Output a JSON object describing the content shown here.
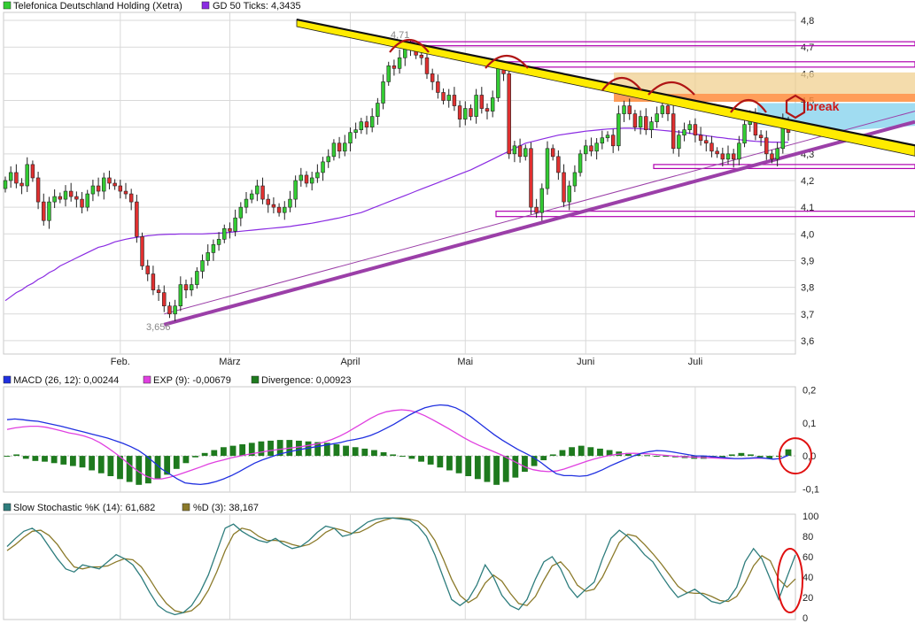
{
  "colors": {
    "grid": "#d9d9d9",
    "up": "#33cc33",
    "down": "#e03030",
    "ma": "#8a2be2",
    "trend_yellow": "#ffeb00",
    "trend_purple": "#9b3fa8",
    "support_box": "#b000b0",
    "resist_orange": "#ff8c3c",
    "resist_sand": "#f0d090",
    "zone_blue": "#8fd6ee",
    "marker_red": "#b01515",
    "macd_line": "#2030e0",
    "exp_line": "#e040e0",
    "divergence": "#1e7a1e",
    "stoch_k": "#2e7d7d",
    "stoch_d": "#8b7a2a"
  },
  "annotations": {
    "low_label": "3,656",
    "high_label": "4,71",
    "break_label": "break"
  },
  "chart_data": [
    {
      "type": "candlestick",
      "title": "",
      "legend": [
        {
          "label": "Telefonica Deutschland Holding (Xetra)",
          "color": "#33cc33"
        },
        {
          "label": "GD 50 Ticks: 4,3435",
          "color": "#8a2be2"
        }
      ],
      "y_ticks": [
        "4,8",
        "4,7",
        "4,6",
        "4,5",
        "4,4",
        "4,3",
        "4,2",
        "4,1",
        "4,0",
        "3,9",
        "3,8",
        "3,7",
        "3,6"
      ],
      "x_ticks": [
        "Feb.",
        "März",
        "April",
        "Mai",
        "Juni",
        "Juli"
      ],
      "ylim": [
        3.55,
        4.83
      ],
      "grid": true,
      "close": [
        4.2,
        4.23,
        4.19,
        4.18,
        4.26,
        4.21,
        4.12,
        4.05,
        4.12,
        4.14,
        4.13,
        4.16,
        4.14,
        4.13,
        4.1,
        4.15,
        4.18,
        4.16,
        4.21,
        4.19,
        4.18,
        4.16,
        4.15,
        4.12,
        3.99,
        3.88,
        3.85,
        3.79,
        3.78,
        3.73,
        3.7,
        3.73,
        3.81,
        3.79,
        3.81,
        3.86,
        3.9,
        3.93,
        3.96,
        3.98,
        4.02,
        4.01,
        4.06,
        4.1,
        4.13,
        4.15,
        4.18,
        4.13,
        4.11,
        4.1,
        4.08,
        4.1,
        4.13,
        4.2,
        4.22,
        4.19,
        4.21,
        4.23,
        4.27,
        4.29,
        4.34,
        4.31,
        4.34,
        4.38,
        4.39,
        4.42,
        4.4,
        4.44,
        4.49,
        4.57,
        4.63,
        4.62,
        4.66,
        4.7,
        4.69,
        4.67,
        4.66,
        4.6,
        4.57,
        4.53,
        4.5,
        4.52,
        4.48,
        4.43,
        4.47,
        4.44,
        4.52,
        4.47,
        4.46,
        4.51,
        4.62,
        4.6,
        4.3,
        4.33,
        4.29,
        4.32,
        4.1,
        4.08,
        4.17,
        4.32,
        4.29,
        4.23,
        4.12,
        4.18,
        4.23,
        4.3,
        4.33,
        4.31,
        4.34,
        4.36,
        4.37,
        4.33,
        4.45,
        4.48,
        4.45,
        4.4,
        4.44,
        4.39,
        4.42,
        4.45,
        4.48,
        4.45,
        4.32,
        4.37,
        4.39,
        4.41,
        4.37,
        4.35,
        4.34,
        4.31,
        4.3,
        4.28,
        4.3,
        4.28,
        4.34,
        4.41,
        4.44,
        4.37,
        4.36,
        4.3,
        4.28,
        4.32,
        4.42,
        4.38
      ],
      "ma50": [
        3.75,
        3.765,
        3.78,
        3.79,
        3.805,
        3.815,
        3.83,
        3.84,
        3.855,
        3.865,
        3.88,
        3.89,
        3.9,
        3.91,
        3.92,
        3.93,
        3.94,
        3.95,
        3.955,
        3.962,
        3.97,
        3.975,
        3.98,
        3.984,
        3.987,
        3.99,
        3.993,
        3.995,
        3.997,
        3.998,
        3.999,
        3.999,
        4.0,
        4.0,
        4.0,
        4.0,
        4.0,
        4.001,
        4.002,
        4.003,
        4.004,
        4.006,
        4.008,
        4.01,
        4.012,
        4.014,
        4.016,
        4.018,
        4.02,
        4.022,
        4.024,
        4.026,
        4.028,
        4.031,
        4.034,
        4.037,
        4.04,
        4.044,
        4.048,
        4.052,
        4.056,
        4.06,
        4.065,
        4.07,
        4.075,
        4.08,
        4.088,
        4.096,
        4.104,
        4.112,
        4.12,
        4.128,
        4.136,
        4.144,
        4.152,
        4.16,
        4.168,
        4.176,
        4.184,
        4.192,
        4.2,
        4.208,
        4.216,
        4.224,
        4.232,
        4.24,
        4.25,
        4.26,
        4.27,
        4.28,
        4.29,
        4.3,
        4.31,
        4.32,
        4.33,
        4.34,
        4.345,
        4.35,
        4.355,
        4.36,
        4.365,
        4.37,
        4.373,
        4.376,
        4.379,
        4.382,
        4.385,
        4.387,
        4.389,
        4.391,
        4.393,
        4.394,
        4.395,
        4.396,
        4.396,
        4.395,
        4.394,
        4.393,
        4.392,
        4.39,
        4.388,
        4.386,
        4.384,
        4.382,
        4.38,
        4.377,
        4.374,
        4.371,
        4.368,
        4.365,
        4.362,
        4.36,
        4.357,
        4.355,
        4.353,
        4.351,
        4.349,
        4.347,
        4.346,
        4.345,
        4.344,
        4.344,
        4.343,
        4.3435
      ]
    },
    {
      "type": "line",
      "title": "",
      "legend": [
        {
          "label": "MACD (26, 12): 0,00244",
          "color": "#2030e0"
        },
        {
          "label": "EXP (9): -0,00679",
          "color": "#e040e0"
        },
        {
          "label": "Divergence: 0,00923",
          "color": "#1e7a1e"
        }
      ],
      "y_ticks": [
        "0,2",
        "0,1",
        "0,0",
        "-0,1"
      ],
      "ylim": [
        -0.11,
        0.21
      ],
      "series": [
        {
          "name": "MACD (26, 12)",
          "values": [
            0.11,
            0.112,
            0.11,
            0.107,
            0.105,
            0.1,
            0.095,
            0.09,
            0.084,
            0.078,
            0.072,
            0.066,
            0.06,
            0.054,
            0.046,
            0.038,
            0.028,
            0.016,
            0.0,
            -0.02,
            -0.04,
            -0.055,
            -0.07,
            -0.082,
            -0.085,
            -0.087,
            -0.084,
            -0.078,
            -0.07,
            -0.06,
            -0.048,
            -0.035,
            -0.022,
            -0.012,
            -0.004,
            0.004,
            0.01,
            0.015,
            0.02,
            0.024,
            0.028,
            0.032,
            0.036,
            0.04,
            0.046,
            0.05,
            0.055,
            0.062,
            0.072,
            0.084,
            0.096,
            0.11,
            0.124,
            0.136,
            0.146,
            0.152,
            0.155,
            0.153,
            0.146,
            0.134,
            0.118,
            0.1,
            0.082,
            0.064,
            0.048,
            0.034,
            0.02,
            0.008,
            -0.004,
            -0.02,
            -0.038,
            -0.054,
            -0.06,
            -0.06,
            -0.062,
            -0.06,
            -0.052,
            -0.042,
            -0.03,
            -0.02,
            -0.01,
            0.0,
            0.008,
            0.013,
            0.016,
            0.015,
            0.012,
            0.008,
            0.004,
            0.0,
            0.0,
            -0.002,
            -0.004,
            -0.006,
            -0.008,
            -0.008,
            -0.007,
            -0.005,
            -0.007,
            -0.01,
            -0.008,
            0.002
          ]
        },
        {
          "name": "EXP (9)",
          "values": [
            0.08,
            0.085,
            0.088,
            0.09,
            0.09,
            0.087,
            0.082,
            0.076,
            0.07,
            0.066,
            0.06,
            0.052,
            0.04,
            0.025,
            0.008,
            -0.01,
            -0.03,
            -0.048,
            -0.062,
            -0.07,
            -0.07,
            -0.065,
            -0.058,
            -0.05,
            -0.042,
            -0.034,
            -0.025,
            -0.018,
            -0.012,
            -0.006,
            -0.001,
            0.004,
            0.008,
            0.012,
            0.016,
            0.019,
            0.022,
            0.025,
            0.028,
            0.032,
            0.036,
            0.042,
            0.05,
            0.06,
            0.072,
            0.086,
            0.1,
            0.114,
            0.126,
            0.134,
            0.138,
            0.14,
            0.138,
            0.132,
            0.122,
            0.11,
            0.097,
            0.084,
            0.07,
            0.056,
            0.043,
            0.032,
            0.022,
            0.012,
            0.002,
            -0.01,
            -0.022,
            -0.034,
            -0.042,
            -0.046,
            -0.048,
            -0.046,
            -0.04,
            -0.032,
            -0.024,
            -0.016,
            -0.009,
            -0.003,
            0.002,
            0.005,
            0.007,
            0.008,
            0.007,
            0.006,
            0.004,
            0.002,
            0.0,
            -0.002,
            -0.003,
            -0.004,
            -0.005,
            -0.006,
            -0.007,
            -0.008,
            -0.008,
            -0.008,
            -0.007,
            -0.007,
            -0.007
          ]
        },
        {
          "name": "Divergence",
          "values": [
            0.0,
            0.002,
            -0.004,
            -0.007,
            -0.008,
            -0.01,
            -0.012,
            -0.014,
            -0.016,
            -0.02,
            -0.024,
            -0.028,
            -0.032,
            -0.036,
            -0.04,
            -0.038,
            -0.032,
            -0.026,
            -0.018,
            -0.01,
            -0.002,
            0.004,
            0.008,
            0.012,
            0.014,
            0.016,
            0.018,
            0.02,
            0.021,
            0.022,
            0.022,
            0.021,
            0.02,
            0.019,
            0.018,
            0.016,
            0.014,
            0.012,
            0.01,
            0.008,
            0.005,
            0.002,
            0.0,
            -0.004,
            -0.008,
            -0.012,
            -0.016,
            -0.02,
            -0.024,
            -0.028,
            -0.032,
            -0.036,
            -0.04,
            -0.036,
            -0.03,
            -0.022,
            -0.014,
            -0.006,
            0.002,
            0.008,
            0.012,
            0.014,
            0.012,
            0.01,
            0.008,
            0.006,
            0.004,
            0.002,
            0.001,
            0.0,
            -0.001,
            -0.002,
            -0.003,
            -0.004,
            -0.004,
            -0.003,
            -0.002,
            0.002,
            0.004,
            0.002,
            -0.002,
            -0.004,
            0.0,
            0.009
          ]
        }
      ]
    },
    {
      "type": "line",
      "title": "",
      "legend": [
        {
          "label": "Slow Stochastic %K (14): 61,682",
          "color": "#2e7d7d"
        },
        {
          "label": "%D (3): 38,167",
          "color": "#8b7a2a"
        }
      ],
      "y_ticks": [
        "100",
        "80",
        "60",
        "40",
        "20",
        "0"
      ],
      "ylim": [
        0,
        100
      ],
      "series": [
        {
          "name": "Slow Stochastic %K (14)",
          "values": [
            70,
            78,
            85,
            88,
            82,
            70,
            58,
            48,
            45,
            52,
            50,
            48,
            55,
            62,
            58,
            52,
            40,
            25,
            12,
            6,
            3,
            5,
            12,
            25,
            42,
            65,
            88,
            92,
            85,
            80,
            76,
            74,
            78,
            72,
            68,
            70,
            76,
            84,
            90,
            88,
            80,
            82,
            88,
            94,
            97,
            98,
            98,
            97,
            96,
            90,
            80,
            62,
            40,
            18,
            12,
            18,
            32,
            52,
            40,
            22,
            12,
            8,
            18,
            38,
            55,
            60,
            48,
            30,
            20,
            28,
            35,
            58,
            78,
            86,
            80,
            72,
            62,
            55,
            42,
            30,
            20,
            24,
            28,
            22,
            16,
            14,
            18,
            30,
            55,
            68,
            58,
            38,
            18,
            40,
            61.7
          ]
        },
        {
          "name": "%D (3)",
          "values": [
            66,
            72,
            79,
            85,
            86,
            81,
            72,
            60,
            50,
            48,
            50,
            50,
            51,
            55,
            58,
            57,
            50,
            38,
            25,
            14,
            7,
            5,
            7,
            14,
            27,
            45,
            66,
            82,
            88,
            86,
            80,
            76,
            76,
            75,
            72,
            70,
            72,
            77,
            84,
            88,
            86,
            83,
            84,
            88,
            93,
            96,
            98,
            98,
            97,
            95,
            88,
            76,
            58,
            38,
            22,
            15,
            20,
            34,
            42,
            36,
            24,
            14,
            12,
            21,
            37,
            51,
            55,
            46,
            32,
            26,
            28,
            40,
            57,
            74,
            82,
            80,
            72,
            63,
            53,
            42,
            31,
            25,
            24,
            24,
            21,
            17,
            16,
            21,
            34,
            51,
            61,
            56,
            38,
            30,
            38.2
          ]
        }
      ]
    }
  ]
}
